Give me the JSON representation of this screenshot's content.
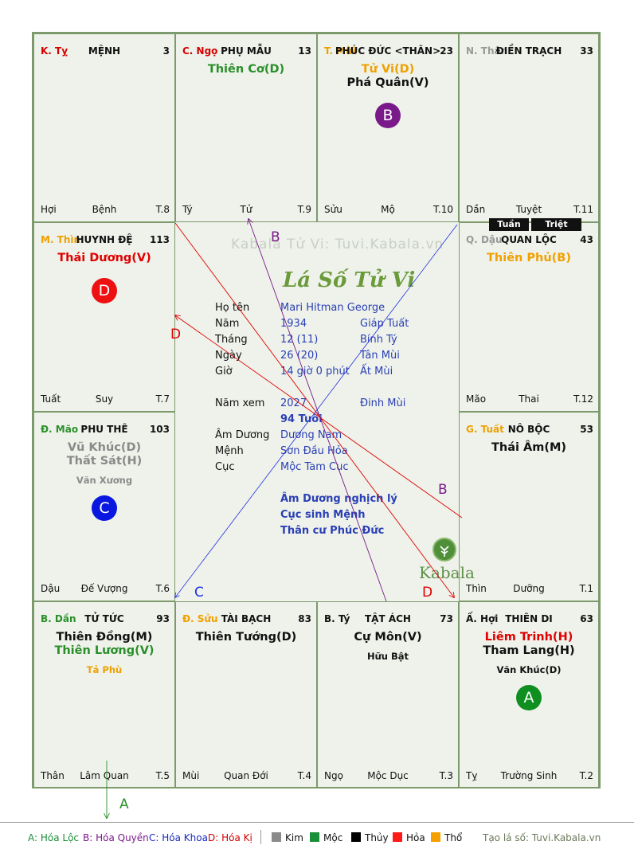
{
  "watermark": "Kabala Tử Vi: Tuvi.Kabala.vn",
  "script_title": "Lá Số Tử Vi",
  "logo_text": "Kabala",
  "palaces": [
    {
      "id": "ty",
      "chi": "K. Tỵ",
      "chi_color": "#d40000",
      "name": "MỆNH",
      "num": "3",
      "stars": [],
      "minor": [],
      "bottom": [
        "Hợi",
        "Bệnh",
        "T.8"
      ]
    },
    {
      "id": "ngo",
      "chi": "C. Ngọ",
      "chi_color": "#d40000",
      "name": "PHỤ MẪU",
      "num": "13",
      "stars": [
        {
          "t": "Thiên Cơ(D)",
          "c": "#2a8f2a"
        }
      ],
      "minor": [],
      "bottom": [
        "Tý",
        "Tử",
        "T.9"
      ]
    },
    {
      "id": "mui",
      "chi": "T. Mùi",
      "chi_color": "#f0a000",
      "name": "PHÚC ĐỨC <THÂN>",
      "num": "23",
      "stars": [
        {
          "t": "Tử Vi(D)",
          "c": "#f0a000"
        },
        {
          "t": "Phá Quân(V)",
          "c": "#111111"
        }
      ],
      "minor": [],
      "bottom": [
        "Sửu",
        "Mộ",
        "T.10"
      ],
      "badge": {
        "t": "B",
        "c": "#7a1a8a"
      }
    },
    {
      "id": "than",
      "chi": "N. Thân",
      "chi_color": "#999999",
      "name": "ĐIỀN TRẠCH",
      "num": "33",
      "stars": [],
      "minor": [],
      "bottom": [
        "Dần",
        "Tuyệt",
        "T.11"
      ]
    },
    {
      "id": "thin",
      "chi": "M. Thìn",
      "chi_color": "#f0a000",
      "name": "HUYNH ĐỆ",
      "num": "113",
      "stars": [
        {
          "t": "Thái Dương(V)",
          "c": "#e00000"
        }
      ],
      "minor": [],
      "bottom": [
        "Tuất",
        "Suy",
        "T.7"
      ],
      "badge": {
        "t": "D",
        "c": "#ee1111"
      }
    },
    {
      "id": "dau",
      "chi": "Q. Dậu",
      "chi_color": "#999999",
      "name": "QUAN LỘC",
      "num": "43",
      "stars": [
        {
          "t": "Thiên Phủ(B)",
          "c": "#f0a000"
        }
      ],
      "minor": [],
      "bottom": [
        "Mão",
        "Thai",
        "T.12"
      ]
    },
    {
      "id": "mao",
      "chi": "Đ. Mão",
      "chi_color": "#2a8f2a",
      "name": "PHU THÊ",
      "num": "103",
      "stars": [
        {
          "t": "Vũ Khúc(D)",
          "c": "#8a8a8a"
        },
        {
          "t": "Thất Sát(H)",
          "c": "#8a8a8a"
        }
      ],
      "minor": [
        {
          "t": "Văn Xương",
          "c": "#8a8a8a"
        }
      ],
      "bottom": [
        "Dậu",
        "Đế Vượng",
        "T.6"
      ],
      "badge": {
        "t": "C",
        "c": "#0a17e0"
      }
    },
    {
      "id": "tuat",
      "chi": "G. Tuất",
      "chi_color": "#f0a000",
      "name": "NÔ BỘC",
      "num": "53",
      "stars": [
        {
          "t": "Thái Âm(M)",
          "c": "#111111"
        }
      ],
      "minor": [],
      "bottom": [
        "Thìn",
        "Dưỡng",
        "T.1"
      ]
    },
    {
      "id": "dan",
      "chi": "B. Dần",
      "chi_color": "#2a8f2a",
      "name": "TỬ TỨC",
      "num": "93",
      "stars": [
        {
          "t": "Thiên Đồng(M)",
          "c": "#111111"
        },
        {
          "t": "Thiên Lương(V)",
          "c": "#2a8f2a"
        }
      ],
      "minor": [
        {
          "t": "Tả Phù",
          "c": "#f0a000"
        }
      ],
      "bottom": [
        "Thân",
        "Lâm Quan",
        "T.5"
      ]
    },
    {
      "id": "suu",
      "chi": "Đ. Sửu",
      "chi_color": "#f0a000",
      "name": "TÀI BẠCH",
      "num": "83",
      "stars": [
        {
          "t": "Thiên Tướng(D)",
          "c": "#111111"
        }
      ],
      "minor": [],
      "bottom": [
        "Mùi",
        "Quan Đới",
        "T.4"
      ]
    },
    {
      "id": "tys",
      "chi": "B. Tý",
      "chi_color": "#111111",
      "name": "TẬT ÁCH",
      "num": "73",
      "stars": [
        {
          "t": "Cự Môn(V)",
          "c": "#111111"
        }
      ],
      "minor": [
        {
          "t": "Hữu Bật",
          "c": "#111111"
        }
      ],
      "bottom": [
        "Ngọ",
        "Mộc Dục",
        "T.3"
      ]
    },
    {
      "id": "hoi",
      "chi": "Ấ. Hợi",
      "chi_color": "#111111",
      "name": "THIÊN DI",
      "num": "63",
      "stars": [
        {
          "t": "Liêm Trinh(H)",
          "c": "#e00000"
        },
        {
          "t": "Tham Lang(H)",
          "c": "#111111"
        }
      ],
      "minor": [
        {
          "t": "Văn Khúc(D)",
          "c": "#111111"
        }
      ],
      "bottom": [
        "Tỵ",
        "Trường Sinh",
        "T.2"
      ],
      "badge": {
        "t": "A",
        "c": "#0f8f1f"
      }
    }
  ],
  "tuan": "Tuần",
  "triet": "Triệt",
  "info": {
    "ho_ten_label": "Họ tên",
    "ho_ten": "Mari Hitman George",
    "nam_label": "Năm",
    "nam": "1934",
    "nam_can": "Giáp Tuất",
    "thang_label": "Tháng",
    "thang": "12  (11)",
    "thang_can": "Bính Tý",
    "ngay_label": "Ngày",
    "ngay": "26  (20)",
    "ngay_can": "Tân Mùi",
    "gio_label": "Giờ",
    "gio": "14 giờ 0 phút",
    "gio_can": "Ất Mùi",
    "namxem_label": "Năm xem",
    "namxem": "2027",
    "namxem_can": "Đinh Mùi",
    "tuoi": "94 Tuổi",
    "amduong_label": "Âm Dương",
    "amduong": "Dương Nam",
    "menh_label": "Mệnh",
    "menh": "Sơn Đầu Hỏa",
    "cuc_label": "Cục",
    "cuc": "Mộc Tam Cục",
    "note1": "Âm Dương nghịch lý",
    "note2": "Cục sinh Mệnh",
    "note3": "Thân cư Phúc Đức"
  },
  "arrow_labels": {
    "a": "A",
    "b1": "B",
    "b2": "B",
    "c": "C",
    "d1": "D",
    "d2": "D"
  },
  "legend": {
    "a": "A: Hóa Lộc",
    "b": "B: Hóa Quyền",
    "c": "C: Hóa Khoa",
    "d": "D: Hóa Kị",
    "kim": "Kim",
    "moc": "Mộc",
    "thuy": "Thủy",
    "hoa": "Hỏa",
    "tho": "Thổ",
    "site": "Tạo lá số: Tuvi.Kabala.vn",
    "colors": {
      "kim": "#8a8a8a",
      "moc": "#1a8f3a",
      "thuy": "#000000",
      "hoa": "#ff1a1a",
      "tho": "#f5a000"
    }
  }
}
